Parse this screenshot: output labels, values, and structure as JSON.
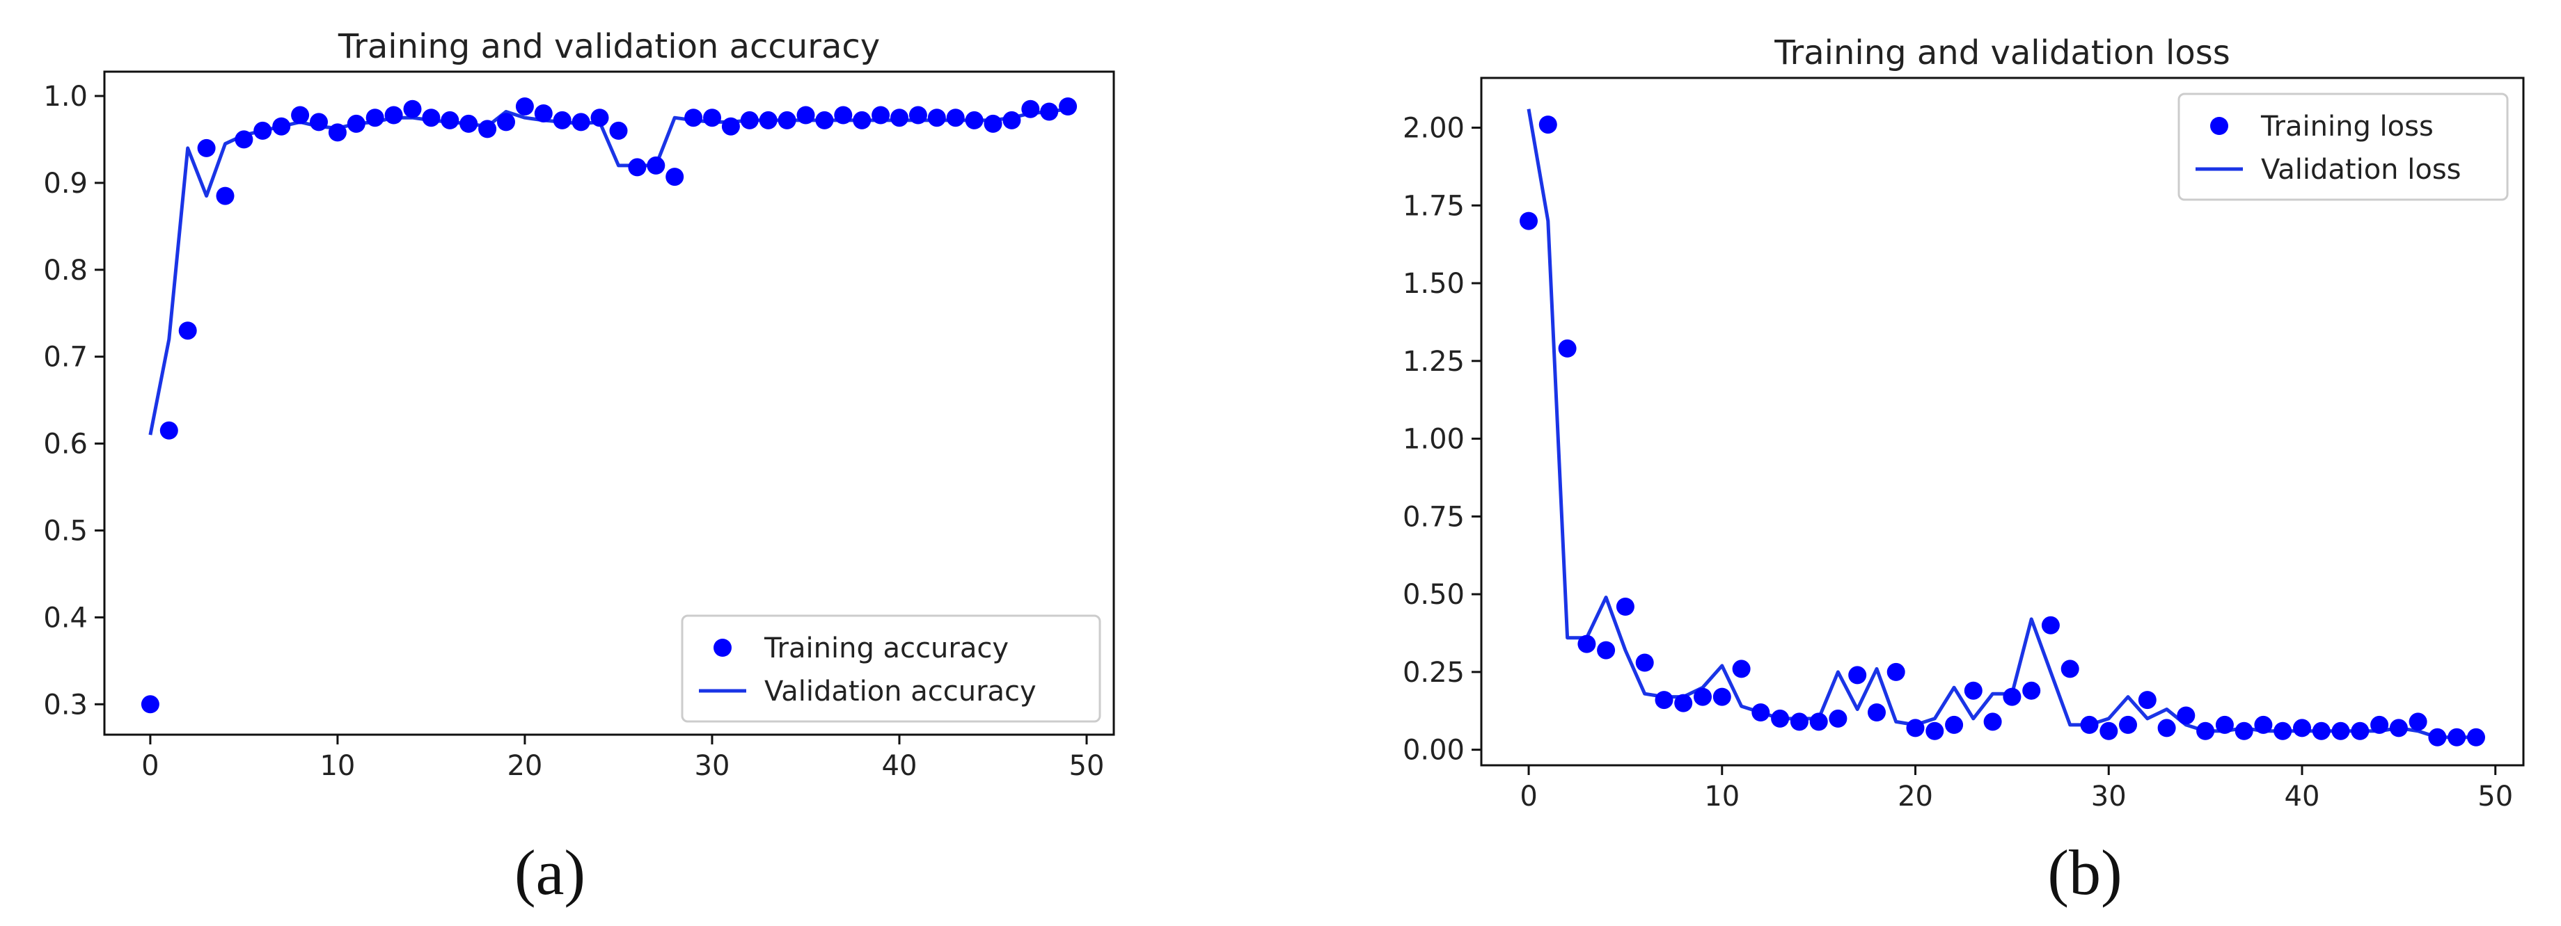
{
  "chart_data": [
    {
      "type": "line",
      "title": "Training and validation accuracy",
      "caption": "(a)",
      "xlim": [
        -2.45,
        51.45
      ],
      "ylim": [
        0.265,
        1.028
      ],
      "xticks": [
        0,
        10,
        20,
        30,
        40,
        50
      ],
      "yticks": [
        0.3,
        0.4,
        0.5,
        0.6,
        0.7,
        0.8,
        0.9,
        1.0
      ],
      "ytick_labels": [
        "0.3",
        "0.4",
        "0.5",
        "0.6",
        "0.7",
        "0.8",
        "0.9",
        "1.0"
      ],
      "grid": false,
      "legend_position": "lower-right",
      "series": [
        {
          "name": "Training accuracy",
          "style": "dots",
          "color": "#0000ff",
          "x": [
            0,
            1,
            2,
            3,
            4,
            5,
            6,
            7,
            8,
            9,
            10,
            11,
            12,
            13,
            14,
            15,
            16,
            17,
            18,
            19,
            20,
            21,
            22,
            23,
            24,
            25,
            26,
            27,
            28,
            29,
            30,
            31,
            32,
            33,
            34,
            35,
            36,
            37,
            38,
            39,
            40,
            41,
            42,
            43,
            44,
            45,
            46,
            47,
            48,
            49
          ],
          "y": [
            0.3,
            0.615,
            0.73,
            0.94,
            0.885,
            0.95,
            0.96,
            0.965,
            0.978,
            0.97,
            0.958,
            0.968,
            0.975,
            0.978,
            0.985,
            0.975,
            0.972,
            0.968,
            0.962,
            0.97,
            0.988,
            0.98,
            0.972,
            0.97,
            0.975,
            0.96,
            0.918,
            0.92,
            0.907,
            0.975,
            0.975,
            0.965,
            0.972,
            0.972,
            0.972,
            0.978,
            0.972,
            0.978,
            0.972,
            0.978,
            0.975,
            0.978,
            0.975,
            0.975,
            0.972,
            0.968,
            0.972,
            0.985,
            0.982,
            0.988
          ]
        },
        {
          "name": "Validation accuracy",
          "style": "line",
          "color": "#1a34e6",
          "x": [
            0,
            1,
            2,
            3,
            4,
            5,
            6,
            7,
            8,
            9,
            10,
            11,
            12,
            13,
            14,
            15,
            16,
            17,
            18,
            19,
            20,
            21,
            22,
            23,
            24,
            25,
            26,
            27,
            28,
            29,
            30,
            31,
            32,
            33,
            34,
            35,
            36,
            37,
            38,
            39,
            40,
            41,
            42,
            43,
            44,
            45,
            46,
            47,
            48,
            49
          ],
          "y": [
            0.61,
            0.72,
            0.94,
            0.885,
            0.945,
            0.955,
            0.96,
            0.965,
            0.97,
            0.965,
            0.963,
            0.968,
            0.97,
            0.975,
            0.975,
            0.972,
            0.97,
            0.968,
            0.965,
            0.982,
            0.975,
            0.972,
            0.97,
            0.968,
            0.97,
            0.92,
            0.92,
            0.92,
            0.975,
            0.972,
            0.97,
            0.97,
            0.972,
            0.972,
            0.972,
            0.972,
            0.972,
            0.972,
            0.972,
            0.972,
            0.972,
            0.972,
            0.972,
            0.972,
            0.972,
            0.972,
            0.975,
            0.98,
            0.982,
            0.985
          ]
        }
      ]
    },
    {
      "type": "line",
      "title": "Training and validation loss",
      "caption": "(b)",
      "xlim": [
        -2.45,
        51.45
      ],
      "ylim": [
        -0.05,
        2.16
      ],
      "xticks": [
        0,
        10,
        20,
        30,
        40,
        50
      ],
      "yticks": [
        0.0,
        0.25,
        0.5,
        0.75,
        1.0,
        1.25,
        1.5,
        1.75,
        2.0
      ],
      "ytick_labels": [
        "0.00",
        "0.25",
        "0.50",
        "0.75",
        "1.00",
        "1.25",
        "1.50",
        "1.75",
        "2.00"
      ],
      "grid": false,
      "legend_position": "upper-right",
      "series": [
        {
          "name": "Training loss",
          "style": "dots",
          "color": "#0000ff",
          "x": [
            0,
            1,
            2,
            3,
            4,
            5,
            6,
            7,
            8,
            9,
            10,
            11,
            12,
            13,
            14,
            15,
            16,
            17,
            18,
            19,
            20,
            21,
            22,
            23,
            24,
            25,
            26,
            27,
            28,
            29,
            30,
            31,
            32,
            33,
            34,
            35,
            36,
            37,
            38,
            39,
            40,
            41,
            42,
            43,
            44,
            45,
            46,
            47,
            48,
            49
          ],
          "y": [
            1.7,
            2.01,
            1.29,
            0.34,
            0.32,
            0.46,
            0.28,
            0.16,
            0.15,
            0.17,
            0.17,
            0.26,
            0.12,
            0.1,
            0.09,
            0.09,
            0.1,
            0.24,
            0.12,
            0.25,
            0.07,
            0.06,
            0.08,
            0.19,
            0.09,
            0.17,
            0.19,
            0.4,
            0.26,
            0.08,
            0.06,
            0.08,
            0.16,
            0.07,
            0.11,
            0.06,
            0.08,
            0.06,
            0.08,
            0.06,
            0.07,
            0.06,
            0.06,
            0.06,
            0.08,
            0.07,
            0.09,
            0.04,
            0.04,
            0.04
          ]
        },
        {
          "name": "Validation loss",
          "style": "line",
          "color": "#1a34e6",
          "x": [
            0,
            1,
            2,
            3,
            4,
            5,
            6,
            7,
            8,
            9,
            10,
            11,
            12,
            13,
            14,
            15,
            16,
            17,
            18,
            19,
            20,
            21,
            22,
            23,
            24,
            25,
            26,
            27,
            28,
            29,
            30,
            31,
            32,
            33,
            34,
            35,
            36,
            37,
            38,
            39,
            40,
            41,
            42,
            43,
            44,
            45,
            46,
            47,
            48,
            49
          ],
          "y": [
            2.06,
            1.7,
            0.36,
            0.36,
            0.49,
            0.32,
            0.18,
            0.17,
            0.17,
            0.2,
            0.27,
            0.14,
            0.12,
            0.1,
            0.1,
            0.1,
            0.25,
            0.13,
            0.26,
            0.09,
            0.08,
            0.1,
            0.2,
            0.1,
            0.18,
            0.18,
            0.42,
            0.25,
            0.08,
            0.08,
            0.1,
            0.17,
            0.1,
            0.13,
            0.08,
            0.06,
            0.06,
            0.07,
            0.06,
            0.06,
            0.06,
            0.06,
            0.06,
            0.06,
            0.06,
            0.07,
            0.06,
            0.04,
            0.04,
            0.04
          ]
        }
      ]
    }
  ]
}
